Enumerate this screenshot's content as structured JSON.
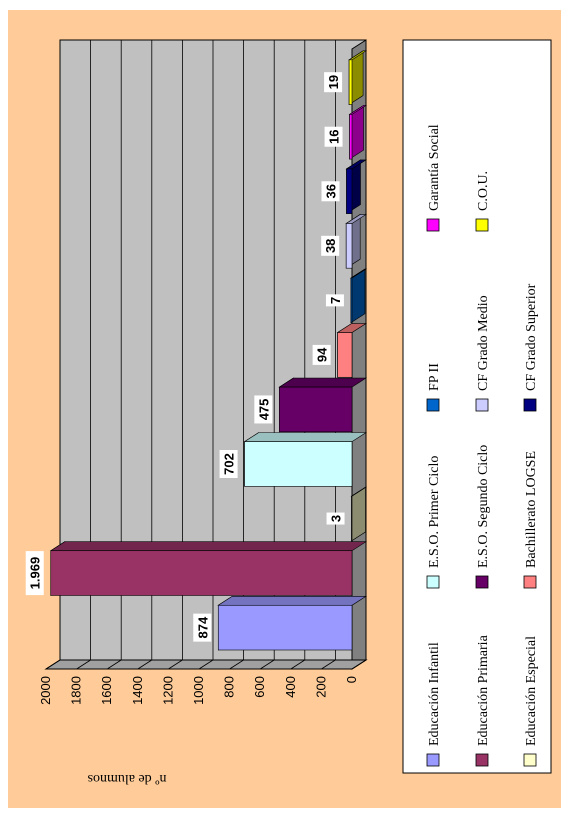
{
  "chart_data": {
    "type": "bar",
    "orientation": "rotated-90",
    "ylabel": "nº de alumnos",
    "ylim": [
      0,
      2000
    ],
    "yticks": [
      0,
      200,
      400,
      600,
      800,
      1000,
      1200,
      1400,
      1600,
      1800,
      2000
    ],
    "grid": true,
    "legend_position": "right",
    "series": [
      {
        "name": "Educación Infantil",
        "value": 874,
        "label": "874",
        "color": "#9999ff"
      },
      {
        "name": "Educación Primaria",
        "value": 1969,
        "label": "1.969",
        "color": "#993366"
      },
      {
        "name": "Educación Especial",
        "value": 3,
        "label": "3",
        "color": "#ffffcc"
      },
      {
        "name": "E.S.O. Primer Ciclo",
        "value": 702,
        "label": "702",
        "color": "#ccffff"
      },
      {
        "name": "E.S.O. Segundo Ciclo",
        "value": 475,
        "label": "475",
        "color": "#660066"
      },
      {
        "name": "Bachillerato LOGSE",
        "value": 94,
        "label": "94",
        "color": "#ff8080"
      },
      {
        "name": "FP II",
        "value": 7,
        "label": "7",
        "color": "#0066cc"
      },
      {
        "name": "CF Grado Medio",
        "value": 38,
        "label": "38",
        "color": "#ccccff"
      },
      {
        "name": "CF Grado Superior",
        "value": 36,
        "label": "36",
        "color": "#000080"
      },
      {
        "name": "Garantía Social",
        "value": 16,
        "label": "16",
        "color": "#ff00ff"
      },
      {
        "name": "C.O.U.",
        "value": 19,
        "label": "19",
        "color": "#ffff00"
      }
    ]
  }
}
